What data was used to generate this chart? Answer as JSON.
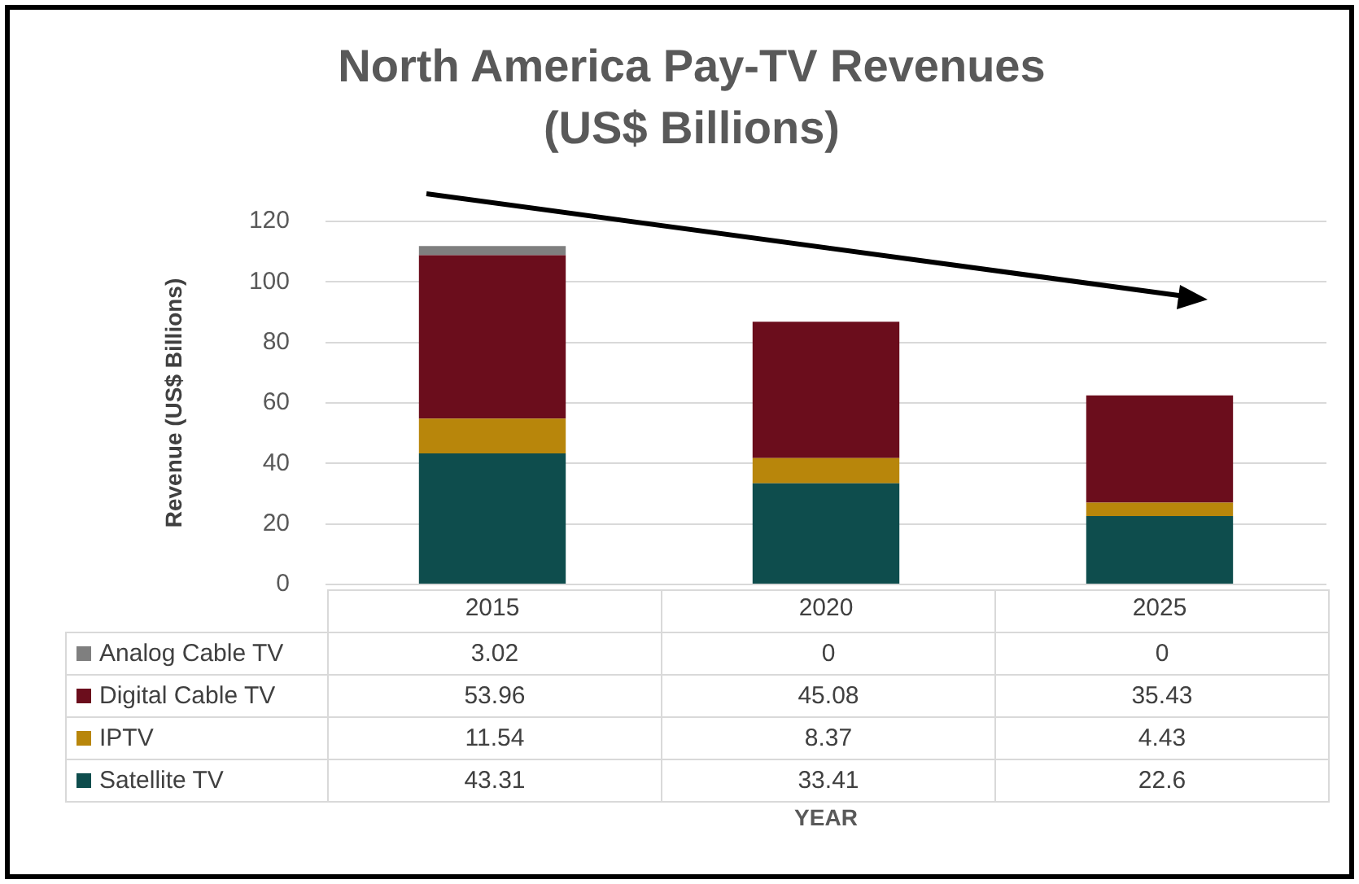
{
  "chart_data": {
    "type": "bar",
    "title": "North America Pay-TV Revenues (US$ Billions)",
    "ylabel": "Revenue (US$ Billions)",
    "annotations": [
      "YEAR"
    ],
    "categories": [
      "2015",
      "2020",
      "2025"
    ],
    "series": [
      {
        "name": "Satellite TV",
        "color": "#0e4d4d",
        "values": [
          43.31,
          33.41,
          22.6
        ]
      },
      {
        "name": "IPTV",
        "color": "#b8860b",
        "values": [
          11.54,
          8.37,
          4.43
        ]
      },
      {
        "name": "Digital Cable TV",
        "color": "#6b0d1c",
        "values": [
          53.96,
          45.08,
          35.43
        ]
      },
      {
        "name": "Analog Cable TV",
        "color": "#7f7f7f",
        "values": [
          3.02,
          0,
          0
        ]
      }
    ],
    "stacked": true,
    "ylim": [
      0,
      120
    ],
    "yticks": [
      0,
      20,
      40,
      60,
      80,
      100,
      120
    ],
    "grid": "y",
    "legend": "bottom",
    "data_labels": true
  }
}
